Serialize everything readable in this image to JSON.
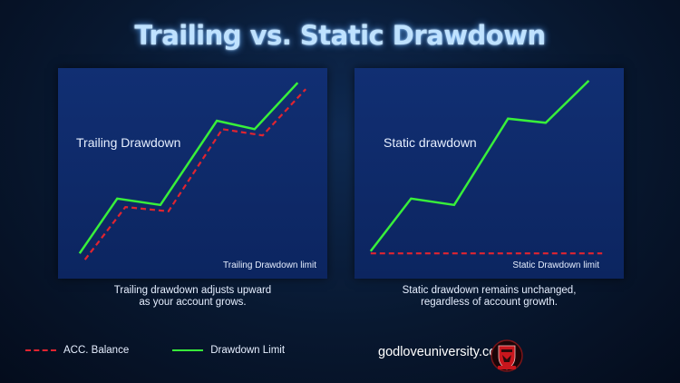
{
  "title": "Trailing vs. Static Drawdown",
  "colors": {
    "acc_balance": "#e02430",
    "drawdown_limit": "#38f03a",
    "panel": "#112f73",
    "title_glow": "#5aaaff"
  },
  "chart_data": [
    {
      "type": "line",
      "title": "Trailing Drawdown",
      "annotation": "Trailing Drawdown limit",
      "caption": [
        "Trailing drawdown adjusts upward",
        "as your account grows."
      ],
      "xlim": [
        0,
        100
      ],
      "ylim": [
        0,
        100
      ],
      "series": [
        {
          "name": "Drawdown Limit",
          "style": "solid",
          "x": [
            8,
            22,
            38,
            59,
            73,
            89
          ],
          "y": [
            12,
            38,
            35,
            75,
            71,
            93
          ]
        },
        {
          "name": "ACC. Balance",
          "style": "dashed",
          "x": [
            10,
            25,
            41,
            61,
            76,
            92
          ],
          "y": [
            9,
            34,
            32,
            71,
            68,
            90
          ]
        }
      ]
    },
    {
      "type": "line",
      "title": "Static drawdown",
      "annotation": "Static Drawdown limit",
      "caption": [
        "Static drawdown remains unchanged,",
        "regardless of account growth."
      ],
      "xlim": [
        0,
        100
      ],
      "ylim": [
        0,
        100
      ],
      "series": [
        {
          "name": "Drawdown Limit",
          "style": "solid",
          "x": [
            6,
            21,
            37,
            57,
            71,
            87
          ],
          "y": [
            13,
            38,
            35,
            76,
            74,
            94
          ]
        },
        {
          "name": "ACC. Balance",
          "style": "dashed",
          "x": [
            6,
            92
          ],
          "y": [
            12,
            12
          ]
        }
      ]
    }
  ],
  "legend": {
    "acc_balance_label": "ACC. Balance",
    "drawdown_limit_label": "Drawdown Limit",
    "position": "bottom-left"
  },
  "website": "godloveuniversity.com",
  "logo_icon": "shield-crest-icon"
}
